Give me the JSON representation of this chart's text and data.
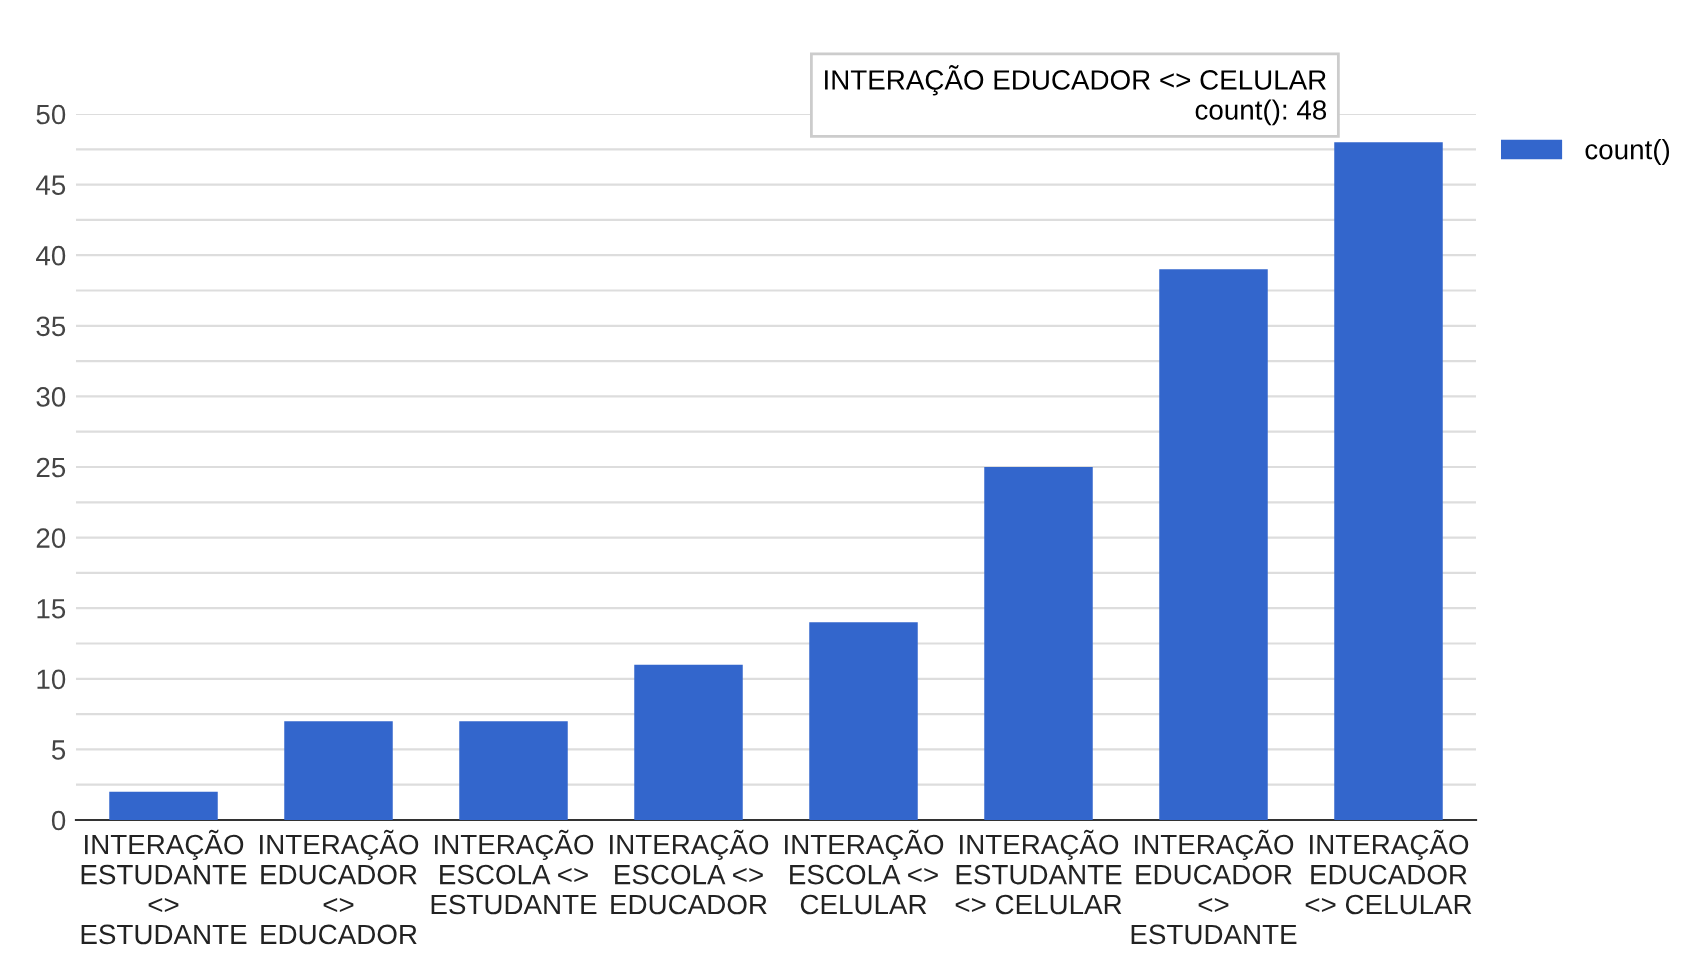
{
  "chart_data": {
    "type": "bar",
    "categories": [
      "INTERAÇÃO ESTUDANTE <> ESTUDANTE",
      "INTERAÇÃO EDUCADOR <> EDUCADOR",
      "INTERAÇÃO ESCOLA <> ESTUDANTE",
      "INTERAÇÃO ESCOLA <> EDUCADOR",
      "INTERAÇÃO ESCOLA <> CELULAR",
      "INTERAÇÃO ESTUDANTE <> CELULAR",
      "INTERAÇÃO EDUCADOR <> ESTUDANTE",
      "INTERAÇÃO EDUCADOR <> CELULAR"
    ],
    "series": [
      {
        "name": "count()",
        "color": "#3366cc",
        "values": [
          2,
          7,
          7,
          11,
          14,
          25,
          39,
          48
        ]
      }
    ],
    "ylim": [
      0,
      50
    ],
    "yticks": [
      0,
      {
        "value": 2.5,
        "label": null
      },
      5,
      {
        "value": 7.5,
        "label": null
      },
      10,
      {
        "value": 12.5,
        "label": null
      },
      15,
      {
        "value": 17.5,
        "label": null
      },
      20,
      {
        "value": 22.5,
        "label": null
      },
      25,
      {
        "value": 27.5,
        "label": null
      },
      30,
      {
        "value": 32.5,
        "label": null
      },
      35,
      {
        "value": 37.5,
        "label": null
      },
      40,
      {
        "value": 42.5,
        "label": null
      },
      45,
      {
        "value": 47.5,
        "label": null
      },
      50
    ],
    "grid": "y",
    "legend": "top right",
    "annotations": [
      {
        "text": "INTERAÇÃO EDUCADOR <> CELULAR\ncount(): 48",
        "x": "INTERAÇÃO EDUCADOR <> CELULAR",
        "y": 48
      }
    ]
  }
}
